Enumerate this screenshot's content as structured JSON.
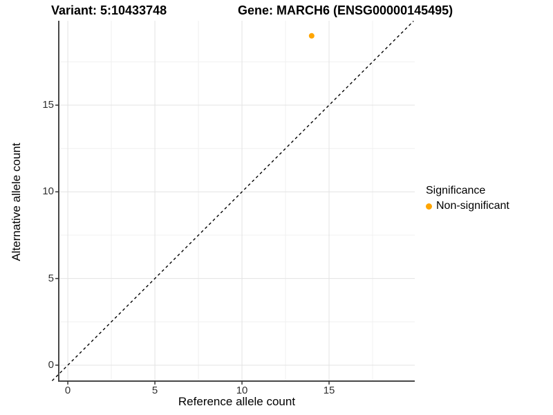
{
  "titles": {
    "variant": "Variant: 5:10433748",
    "gene": "Gene: MARCH6 (ENSG00000145495)"
  },
  "chart_data": {
    "type": "scatter",
    "title": "Variant: 5:10433748   Gene: MARCH6 (ENSG00000145495)",
    "xlabel": "Reference allele count",
    "ylabel": "Alternative allele count",
    "xlim": [
      -0.52,
      19.92
    ],
    "ylim": [
      -0.92,
      19.87
    ],
    "x_ticks": [
      0,
      5,
      10,
      15
    ],
    "y_ticks": [
      0,
      5,
      10,
      15
    ],
    "x_minor_ticks": [
      2.5,
      7.5,
      12.5,
      17.5
    ],
    "y_minor_ticks": [
      2.5,
      7.5,
      12.5,
      17.5
    ],
    "grid": true,
    "legend_position": "right",
    "series": [
      {
        "name": "Non-significant",
        "color": "#FFA500",
        "points": [
          {
            "x": 14,
            "y": 19
          }
        ]
      }
    ],
    "reference_line": {
      "type": "identity",
      "equation": "y = x",
      "style": "dashed",
      "color": "#000000",
      "from": -0.9,
      "to": 19.85
    },
    "legend": {
      "title": "Significance",
      "entries": [
        {
          "label": "Non-significant",
          "color": "#FFA500"
        }
      ]
    }
  },
  "style_colors": {
    "grid_major": "#e3e3e3",
    "grid_minor": "#f0f0f0",
    "axis_line": "#474747",
    "tick_mark": "#333333",
    "point_fill": "#FFA500"
  }
}
